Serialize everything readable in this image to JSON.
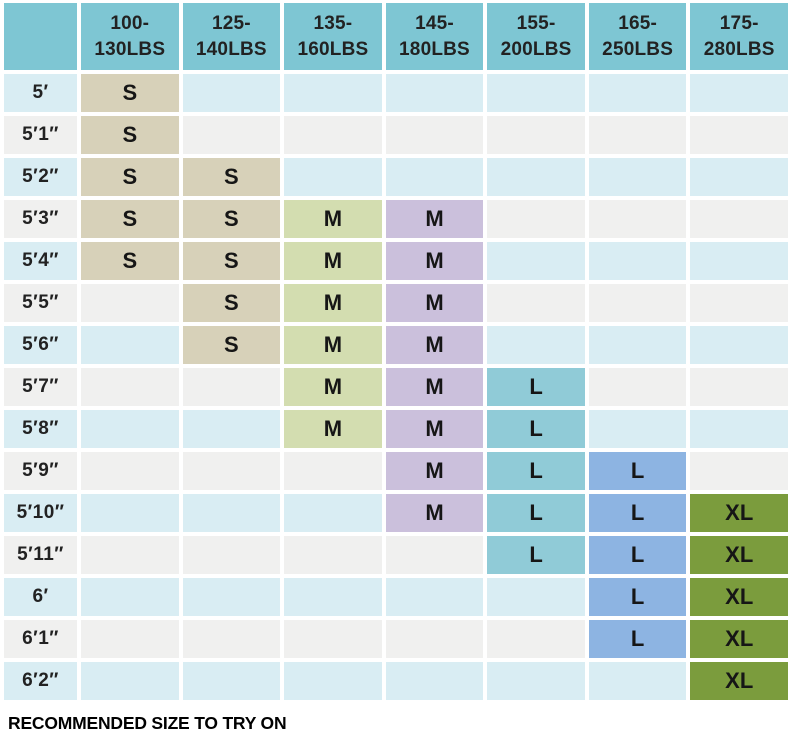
{
  "chart_data": {
    "type": "table",
    "title": "",
    "corner_label": "",
    "columns": [
      {
        "line1": "100-",
        "line2": "130LBS"
      },
      {
        "line1": "125-",
        "line2": "140LBS"
      },
      {
        "line1": "135-",
        "line2": "160LBS"
      },
      {
        "line1": "145-",
        "line2": "180LBS"
      },
      {
        "line1": "155-",
        "line2": "200LBS"
      },
      {
        "line1": "165-",
        "line2": "250LBS"
      },
      {
        "line1": "175-",
        "line2": "280LBS"
      }
    ],
    "rows": [
      {
        "height": "5′",
        "cells": [
          "S",
          "",
          "",
          "",
          "",
          "",
          ""
        ]
      },
      {
        "height": "5′1″",
        "cells": [
          "S",
          "",
          "",
          "",
          "",
          "",
          ""
        ]
      },
      {
        "height": "5′2″",
        "cells": [
          "S",
          "S",
          "",
          "",
          "",
          "",
          ""
        ]
      },
      {
        "height": "5′3″",
        "cells": [
          "S",
          "S",
          "M1",
          "M2",
          "",
          "",
          ""
        ]
      },
      {
        "height": "5′4″",
        "cells": [
          "S",
          "S",
          "M1",
          "M2",
          "",
          "",
          ""
        ]
      },
      {
        "height": "5′5″",
        "cells": [
          "",
          "S",
          "M1",
          "M2",
          "",
          "",
          ""
        ]
      },
      {
        "height": "5′6″",
        "cells": [
          "",
          "S",
          "M1",
          "M2",
          "",
          "",
          ""
        ]
      },
      {
        "height": "5′7″",
        "cells": [
          "",
          "",
          "M1",
          "M2",
          "L1",
          "",
          ""
        ]
      },
      {
        "height": "5′8″",
        "cells": [
          "",
          "",
          "M1",
          "M2",
          "L1",
          "",
          ""
        ]
      },
      {
        "height": "5′9″",
        "cells": [
          "",
          "",
          "",
          "M2",
          "L1",
          "L2",
          ""
        ]
      },
      {
        "height": "5′10″",
        "cells": [
          "",
          "",
          "",
          "M2",
          "L1",
          "L2",
          "XL"
        ]
      },
      {
        "height": "5′11″",
        "cells": [
          "",
          "",
          "",
          "",
          "L1",
          "L2",
          "XL"
        ]
      },
      {
        "height": "6′",
        "cells": [
          "",
          "",
          "",
          "",
          "",
          "L2",
          "XL"
        ]
      },
      {
        "height": "6′1″",
        "cells": [
          "",
          "",
          "",
          "",
          "",
          "L2",
          "XL"
        ]
      },
      {
        "height": "6′2″",
        "cells": [
          "",
          "",
          "",
          "",
          "",
          "",
          "XL"
        ]
      }
    ],
    "size_labels": {
      "S": "S",
      "M1": "M",
      "M2": "M",
      "L1": "L",
      "L2": "L",
      "XL": "XL"
    },
    "annotation": "RECOMMENDED SIZE TO TRY ON",
    "legend_position": "none",
    "grid": "off"
  },
  "colors": {
    "header_bg": "#7ec6d3",
    "row_alt_blue": "#d9edf3",
    "row_alt_gray": "#f0f0ef",
    "S": "#d7d1b9",
    "M1": "#d3ddb0",
    "M2": "#cbc0dc",
    "L1": "#90cbd7",
    "L2": "#8db4e2",
    "XL": "#7b9c3d",
    "text": "#1a1a1a"
  },
  "footer": {
    "note": "RECOMMENDED SIZE TO TRY ON"
  }
}
